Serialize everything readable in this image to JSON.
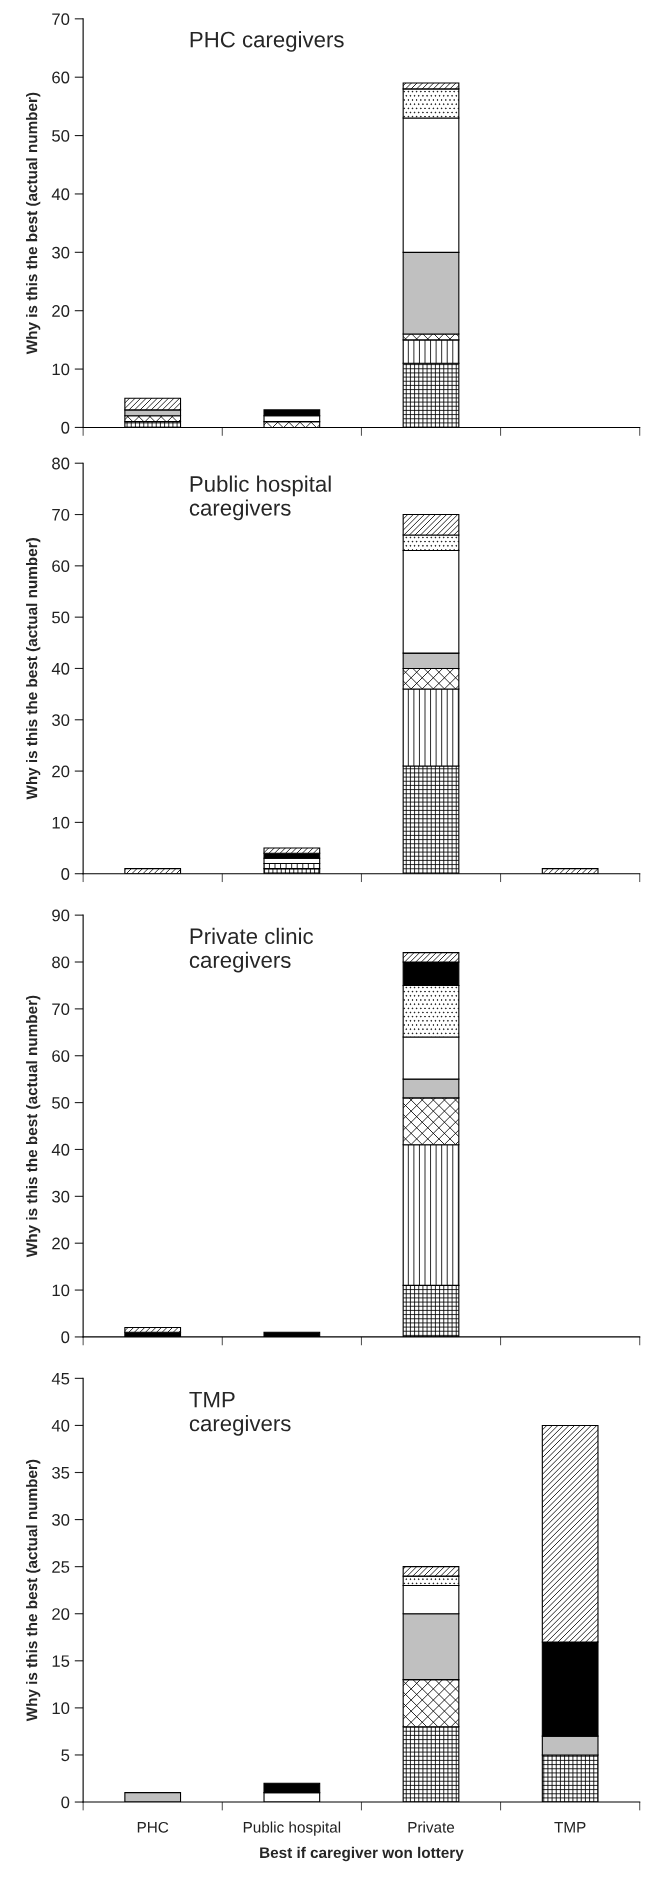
{
  "chart_data": [
    {
      "type": "bar",
      "stacked": true,
      "title": "PHC caregivers",
      "ylabel": "Why is this the best (actual number)",
      "categories": [
        null,
        null,
        null,
        null
      ],
      "ylim": [
        0,
        70
      ],
      "yticks": [
        0,
        10,
        20,
        30,
        40,
        50,
        60,
        70
      ],
      "tick_labels": "y",
      "grid": false,
      "legend": false,
      "series": [
        {
          "color": "#ffffff",
          "values": [
            1,
            0,
            11,
            0
          ]
        },
        {
          "color": "#ffffff",
          "values": [
            0,
            0,
            4,
            0
          ]
        },
        {
          "color": "#ffffff",
          "values": [
            1,
            1,
            1,
            0
          ]
        },
        {
          "color": "#c0c0c0",
          "values": [
            1,
            0,
            14,
            0
          ]
        },
        {
          "color": "#ffffff",
          "values": [
            0,
            1,
            23,
            0
          ]
        },
        {
          "color": "#ffffff",
          "values": [
            0,
            0,
            5,
            0
          ]
        },
        {
          "color": "#000000",
          "values": [
            0,
            1,
            0,
            0
          ]
        },
        {
          "color": "#ffffff",
          "values": [
            2,
            0,
            1,
            0
          ]
        }
      ]
    },
    {
      "type": "bar",
      "stacked": true,
      "title": "Public hospital\ncaregivers",
      "ylabel": "Why is this the best (actual number)",
      "categories": [
        null,
        null,
        null,
        null
      ],
      "ylim": [
        0,
        80
      ],
      "yticks": [
        0,
        10,
        20,
        30,
        40,
        50,
        60,
        70,
        80
      ],
      "tick_labels": "y",
      "grid": false,
      "legend": false,
      "series": [
        {
          "color": "#ffffff",
          "values": [
            0,
            1,
            21,
            0
          ]
        },
        {
          "color": "#ffffff",
          "values": [
            0,
            1,
            15,
            0
          ]
        },
        {
          "color": "#ffffff",
          "values": [
            0,
            0,
            4,
            0
          ]
        },
        {
          "color": "#c0c0c0",
          "values": [
            0,
            0,
            3,
            0
          ]
        },
        {
          "color": "#ffffff",
          "values": [
            0,
            1,
            20,
            0
          ]
        },
        {
          "color": "#ffffff",
          "values": [
            0,
            0,
            3,
            0
          ]
        },
        {
          "color": "#000000",
          "values": [
            0,
            1,
            0,
            0
          ]
        },
        {
          "color": "#ffffff",
          "values": [
            1,
            1,
            4,
            1
          ]
        }
      ]
    },
    {
      "type": "bar",
      "stacked": true,
      "title": "Private clinic\ncaregivers",
      "ylabel": "Why is this the best (actual number)",
      "categories": [
        null,
        null,
        null,
        null
      ],
      "ylim": [
        0,
        90
      ],
      "yticks": [
        0,
        10,
        20,
        30,
        40,
        50,
        60,
        70,
        80,
        90
      ],
      "tick_labels": "y",
      "grid": false,
      "legend": false,
      "series": [
        {
          "color": "#ffffff",
          "values": [
            0,
            0,
            11,
            0
          ]
        },
        {
          "color": "#ffffff",
          "values": [
            0,
            0,
            30,
            0
          ]
        },
        {
          "color": "#ffffff",
          "values": [
            0,
            0,
            10,
            0
          ]
        },
        {
          "color": "#c0c0c0",
          "values": [
            0,
            0,
            4,
            0
          ]
        },
        {
          "color": "#ffffff",
          "values": [
            0,
            0,
            9,
            0
          ]
        },
        {
          "color": "#ffffff",
          "values": [
            0,
            0,
            11,
            0
          ]
        },
        {
          "color": "#000000",
          "values": [
            1,
            1,
            5,
            0
          ]
        },
        {
          "color": "#ffffff",
          "values": [
            1,
            0,
            2,
            0
          ]
        }
      ]
    },
    {
      "type": "bar",
      "stacked": true,
      "title": "TMP\ncaregivers",
      "ylabel": "Why is this the best (actual number)",
      "xlabel": "Best if caregiver won lottery",
      "categories": [
        "PHC",
        "Public hospital",
        "Private",
        "TMP"
      ],
      "ylim": [
        0,
        45
      ],
      "yticks": [
        0,
        5,
        10,
        15,
        20,
        25,
        30,
        35,
        40,
        45
      ],
      "grid": false,
      "legend": false,
      "series": [
        {
          "color": "#ffffff",
          "values": [
            0,
            0,
            8,
            5
          ]
        },
        {
          "color": "#ffffff",
          "values": [
            0,
            0,
            0,
            0
          ]
        },
        {
          "color": "#ffffff",
          "values": [
            0,
            0,
            5,
            0
          ]
        },
        {
          "color": "#c0c0c0",
          "values": [
            1,
            0,
            7,
            2
          ]
        },
        {
          "color": "#ffffff",
          "values": [
            0,
            1,
            3,
            0
          ]
        },
        {
          "color": "#ffffff",
          "values": [
            0,
            0,
            1,
            0
          ]
        },
        {
          "color": "#000000",
          "values": [
            0,
            1,
            0,
            10
          ]
        },
        {
          "color": "#ffffff",
          "values": [
            0,
            0,
            1,
            23
          ]
        }
      ]
    }
  ]
}
